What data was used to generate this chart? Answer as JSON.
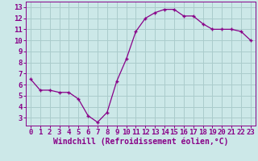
{
  "x": [
    0,
    1,
    2,
    3,
    4,
    5,
    6,
    7,
    8,
    9,
    10,
    11,
    12,
    13,
    14,
    15,
    16,
    17,
    18,
    19,
    20,
    21,
    22,
    23
  ],
  "y": [
    6.5,
    5.5,
    5.5,
    5.3,
    5.3,
    4.7,
    3.2,
    2.6,
    3.5,
    6.3,
    8.3,
    10.8,
    12.0,
    12.5,
    12.8,
    12.8,
    12.2,
    12.2,
    11.5,
    11.0,
    11.0,
    11.0,
    10.8,
    10.0
  ],
  "line_color": "#880088",
  "marker": "+",
  "marker_size": 3,
  "bg_color": "#cce8e8",
  "grid_color": "#aacccc",
  "xlabel": "Windchill (Refroidissement éolien,°C)",
  "xlabel_color": "#880088",
  "xlabel_fontsize": 7,
  "tick_color": "#880088",
  "tick_fontsize": 6.5,
  "xlim": [
    -0.5,
    23.5
  ],
  "ylim": [
    2.3,
    13.5
  ],
  "yticks": [
    3,
    4,
    5,
    6,
    7,
    8,
    9,
    10,
    11,
    12,
    13
  ],
  "xticks": [
    0,
    1,
    2,
    3,
    4,
    5,
    6,
    7,
    8,
    9,
    10,
    11,
    12,
    13,
    14,
    15,
    16,
    17,
    18,
    19,
    20,
    21,
    22,
    23
  ]
}
